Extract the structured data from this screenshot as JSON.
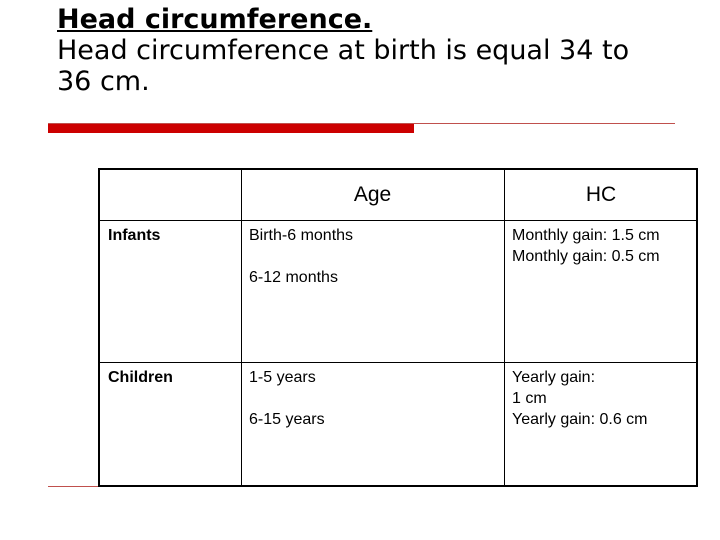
{
  "slide": {
    "title": "Head circumference.",
    "subtitle_line1": "Head circumference at birth is equal 34 to",
    "subtitle_line2": "36 cm."
  },
  "table": {
    "headers": [
      "",
      "Age",
      "HC"
    ],
    "rows": [
      {
        "label": "Infants",
        "age_1": "Birth-6 months",
        "age_2": "6-12 months",
        "hc_1": "Monthly gain: 1.5 cm",
        "hc_2": "Monthly gain: 0.5 cm"
      },
      {
        "label": "Children",
        "age_1": "1-5 years",
        "age_2": "6-15 years",
        "hc_1": "Yearly gain:",
        "hc_1b": "1 cm",
        "hc_2": "Yearly gain: 0.6 cm"
      }
    ]
  },
  "colors": {
    "accent_bar": "#cc0000",
    "accent_line": "#c0504d"
  }
}
